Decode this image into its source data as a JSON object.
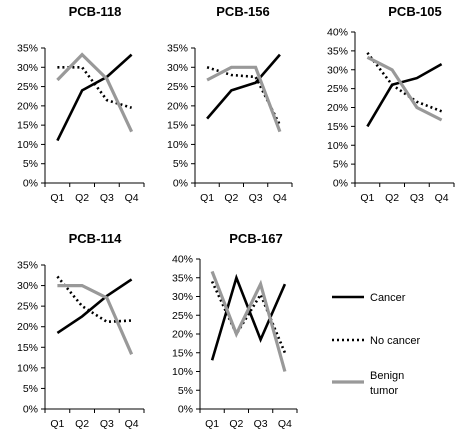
{
  "legend": {
    "items": [
      {
        "label_lines": [
          "Cancer"
        ],
        "color": "#000000",
        "dash": "solid"
      },
      {
        "label_lines": [
          "No cancer"
        ],
        "color": "#000000",
        "dash": "dotted"
      },
      {
        "label_lines": [
          "Benign",
          "tumor"
        ],
        "color": "#999999",
        "dash": "solid"
      }
    ]
  },
  "chart_data": [
    {
      "type": "line",
      "title": "PCB-118",
      "categories": [
        "Q1",
        "Q2",
        "Q3",
        "Q4"
      ],
      "yticks": [
        "0%",
        "5%",
        "10%",
        "15%",
        "20%",
        "25%",
        "30%",
        "35%"
      ],
      "ylim": [
        0,
        35
      ],
      "series": [
        {
          "name": "Cancer",
          "values": [
            11,
            24,
            27.5,
            33.3
          ]
        },
        {
          "name": "No cancer",
          "values": [
            30,
            30,
            21.5,
            19.5
          ]
        },
        {
          "name": "Benign tumor",
          "values": [
            26.7,
            33.3,
            27,
            13.3
          ]
        }
      ]
    },
    {
      "type": "line",
      "title": "PCB-156",
      "categories": [
        "Q1",
        "Q2",
        "Q3",
        "Q4"
      ],
      "yticks": [
        "0%",
        "5%",
        "10%",
        "15%",
        "20%",
        "25%",
        "30%",
        "35%"
      ],
      "ylim": [
        0,
        35
      ],
      "series": [
        {
          "name": "Cancer",
          "values": [
            16.7,
            24,
            26,
            33.3
          ]
        },
        {
          "name": "No cancer",
          "values": [
            30,
            28,
            27.5,
            15
          ]
        },
        {
          "name": "Benign tumor",
          "values": [
            26.7,
            30,
            30,
            13.3
          ]
        }
      ]
    },
    {
      "type": "line",
      "title": "PCB-105",
      "categories": [
        "Q1",
        "Q2",
        "Q3",
        "Q4"
      ],
      "yticks": [
        "0%",
        "5%",
        "10%",
        "15%",
        "20%",
        "25%",
        "30%",
        "35%",
        "40%"
      ],
      "ylim": [
        0,
        40
      ],
      "series": [
        {
          "name": "Cancer",
          "values": [
            15,
            26,
            27.8,
            31.5
          ]
        },
        {
          "name": "No cancer",
          "values": [
            34.5,
            26,
            21.5,
            19
          ]
        },
        {
          "name": "Benign tumor",
          "values": [
            33.3,
            30,
            20,
            16.7
          ]
        }
      ]
    },
    {
      "type": "line",
      "title": "PCB-114",
      "categories": [
        "Q1",
        "Q2",
        "Q3",
        "Q4"
      ],
      "yticks": [
        "0%",
        "5%",
        "10%",
        "15%",
        "20%",
        "25%",
        "30%",
        "35%"
      ],
      "ylim": [
        0,
        35
      ],
      "series": [
        {
          "name": "Cancer",
          "values": [
            18.5,
            22.5,
            27.5,
            31.5
          ]
        },
        {
          "name": "No cancer",
          "values": [
            32.2,
            25,
            21.2,
            21.5
          ]
        },
        {
          "name": "Benign tumor",
          "values": [
            30,
            30,
            27,
            13.3
          ]
        }
      ]
    },
    {
      "type": "line",
      "title": "PCB-167",
      "categories": [
        "Q1",
        "Q2",
        "Q3",
        "Q4"
      ],
      "yticks": [
        "0%",
        "5%",
        "10%",
        "15%",
        "20%",
        "25%",
        "30%",
        "35%",
        "40%"
      ],
      "ylim": [
        0,
        40
      ],
      "series": [
        {
          "name": "Cancer",
          "values": [
            13,
            35,
            18.5,
            33.3
          ]
        },
        {
          "name": "No cancer",
          "values": [
            34,
            20,
            30.5,
            15
          ]
        },
        {
          "name": "Benign tumor",
          "values": [
            36.7,
            20,
            33.3,
            10
          ]
        }
      ]
    }
  ]
}
